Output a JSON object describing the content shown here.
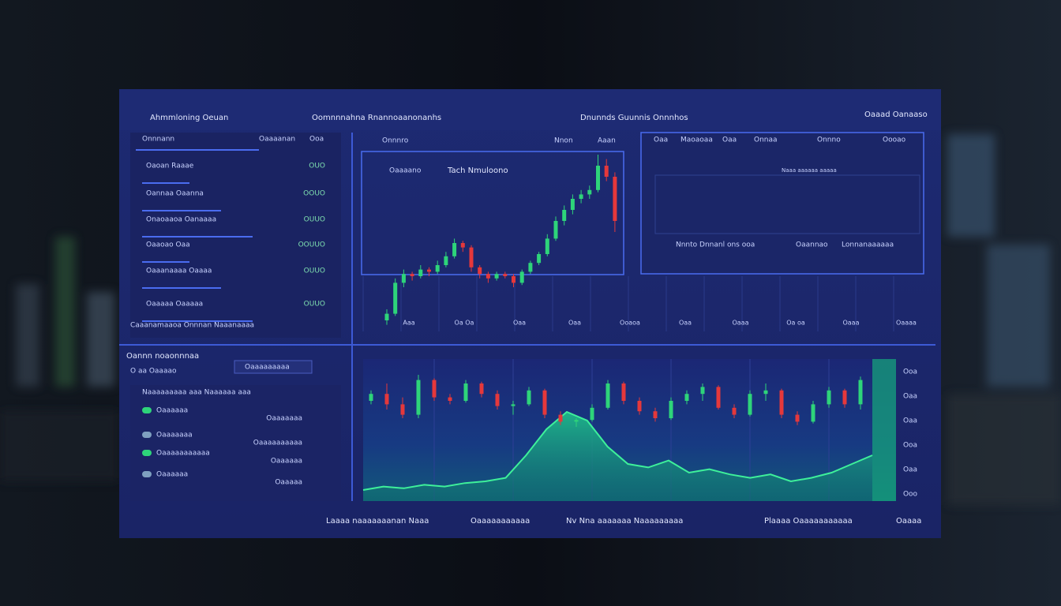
{
  "header": {
    "title": "Ahmmloning Oeuan",
    "tabs": [
      "Oomnnnahna Rnannoaanonanhs",
      "Dnunnds Guunnis Onnnhos"
    ],
    "user": "Oaaad Oanaaso"
  },
  "left_panel": {
    "heading": "Onnnann",
    "heading_value": "Oaaaanan",
    "heading_tag": "Ooa",
    "rows": [
      {
        "label": "Oaoan Raaae",
        "value": "OUO"
      },
      {
        "label": "Oannaa Oaanna",
        "value": "OOUO"
      },
      {
        "label": "Onaoaaoa Oanaaaa",
        "value": "OUUO"
      },
      {
        "label": "Oaaoao Oaa",
        "value": "OOUUO"
      },
      {
        "label": "Oaaanaaaa Oaaaa",
        "value": "OUUO"
      },
      {
        "label": "Oaaaaa Oaaaaa",
        "value": "OUUO"
      }
    ],
    "footer": "Caaanamaaoa  Onnnan  Naaanaaaa"
  },
  "chart_top": {
    "tabs": [
      "Onnnro",
      "Nnon",
      "Aaan"
    ],
    "legend": "Oaaaano",
    "title": "Tach Nmuloono",
    "x_labels": [
      "Aaa",
      "Oa Oa",
      "Oaa",
      "Oaa",
      "Ooaoa",
      "Oaa",
      "Oaaa",
      "Oa oa",
      "Oaaa",
      "Oaaaa"
    ],
    "ohlc": [
      [
        5,
        10,
        3,
        8
      ],
      [
        8,
        24,
        7,
        22
      ],
      [
        22,
        28,
        20,
        26
      ],
      [
        26,
        27,
        23,
        25
      ],
      [
        25,
        30,
        24,
        28
      ],
      [
        28,
        29,
        25,
        27
      ],
      [
        27,
        32,
        26,
        30
      ],
      [
        30,
        36,
        29,
        34
      ],
      [
        34,
        42,
        33,
        40
      ],
      [
        40,
        41,
        36,
        38
      ],
      [
        38,
        39,
        27,
        29
      ],
      [
        29,
        30,
        24,
        26
      ],
      [
        26,
        27,
        22,
        24
      ],
      [
        24,
        27,
        23,
        26
      ],
      [
        26,
        27,
        24,
        25
      ],
      [
        25,
        26,
        20,
        22
      ],
      [
        22,
        28,
        21,
        27
      ],
      [
        27,
        32,
        26,
        31
      ],
      [
        31,
        36,
        30,
        35
      ],
      [
        35,
        44,
        34,
        42
      ],
      [
        42,
        52,
        41,
        50
      ],
      [
        50,
        57,
        48,
        55
      ],
      [
        55,
        62,
        53,
        60
      ],
      [
        60,
        64,
        58,
        62
      ],
      [
        62,
        66,
        60,
        64
      ],
      [
        64,
        80,
        63,
        75
      ],
      [
        75,
        78,
        68,
        70
      ],
      [
        70,
        72,
        45,
        50
      ]
    ]
  },
  "panel_right": {
    "tabs": [
      "Oaa",
      "Maoaoaa",
      "Oaa",
      "Onnaa",
      "Onnno"
    ],
    "label": "Oooao",
    "note": "Naaa aaaaaa aaaaa",
    "stats": [
      "Nnnto Dnnanl ons ooa",
      "Oaannao",
      "Lonnanaaaaaa"
    ]
  },
  "lower_left": {
    "title": "Oannn noaonnnaa",
    "subtitle": "O aa  Oaaaao",
    "search": "Oaaaaaaaaa",
    "rows": [
      {
        "label": "Naaaaaaaaa aaa Naaaaaa aaa",
        "value": ""
      },
      {
        "label": "Oaaaaaa",
        "value": "Oaaaaaaa"
      },
      {
        "label": "Oaaaaaaa",
        "value": "Oaaaaaaaaaa"
      },
      {
        "label": "Oaaaaaaaaaaa",
        "value": "Oaaaaaa"
      },
      {
        "label": "Oaaaaaa",
        "value": "Oaaaaa"
      }
    ]
  },
  "chart_bottom": {
    "ohlc": [
      [
        60,
        66,
        58,
        64
      ],
      [
        64,
        70,
        55,
        58
      ],
      [
        58,
        62,
        50,
        52
      ],
      [
        52,
        75,
        50,
        72
      ],
      [
        72,
        73,
        60,
        62
      ],
      [
        62,
        64,
        58,
        60
      ],
      [
        60,
        72,
        59,
        70
      ],
      [
        70,
        71,
        62,
        64
      ],
      [
        64,
        66,
        55,
        57
      ],
      [
        57,
        60,
        52,
        58
      ],
      [
        58,
        68,
        57,
        66
      ],
      [
        66,
        67,
        50,
        52
      ],
      [
        52,
        54,
        46,
        48
      ],
      [
        48,
        50,
        45,
        49
      ],
      [
        49,
        58,
        48,
        56
      ],
      [
        56,
        72,
        55,
        70
      ],
      [
        70,
        71,
        58,
        60
      ],
      [
        60,
        62,
        52,
        54
      ],
      [
        54,
        56,
        48,
        50
      ],
      [
        50,
        62,
        49,
        60
      ],
      [
        60,
        66,
        58,
        64
      ],
      [
        64,
        70,
        60,
        68
      ],
      [
        68,
        69,
        55,
        56
      ],
      [
        56,
        58,
        50,
        52
      ],
      [
        52,
        66,
        51,
        64
      ],
      [
        64,
        70,
        60,
        66
      ],
      [
        66,
        67,
        50,
        52
      ],
      [
        52,
        54,
        46,
        48
      ],
      [
        48,
        60,
        47,
        58
      ],
      [
        58,
        68,
        56,
        66
      ],
      [
        66,
        67,
        56,
        58
      ],
      [
        58,
        74,
        55,
        72
      ]
    ],
    "area": [
      5,
      7,
      6,
      8,
      7,
      9,
      10,
      12,
      25,
      40,
      50,
      45,
      30,
      20,
      18,
      22,
      15,
      17,
      14,
      12,
      14,
      10,
      12,
      15,
      20,
      25
    ],
    "y_labels": [
      "Ooa",
      "Oaa",
      "Oaa",
      "Ooa",
      "Oaa",
      "Ooo"
    ]
  },
  "footer": {
    "items": [
      "Laaaa naaaaaaanan Naaa",
      "Oaaaaaaaaaaa",
      "Nv Nna aaaaaaa Naaaaaaaaa",
      "Plaaaa Oaaaaaaaaaaa",
      "Oaaaa"
    ]
  }
}
